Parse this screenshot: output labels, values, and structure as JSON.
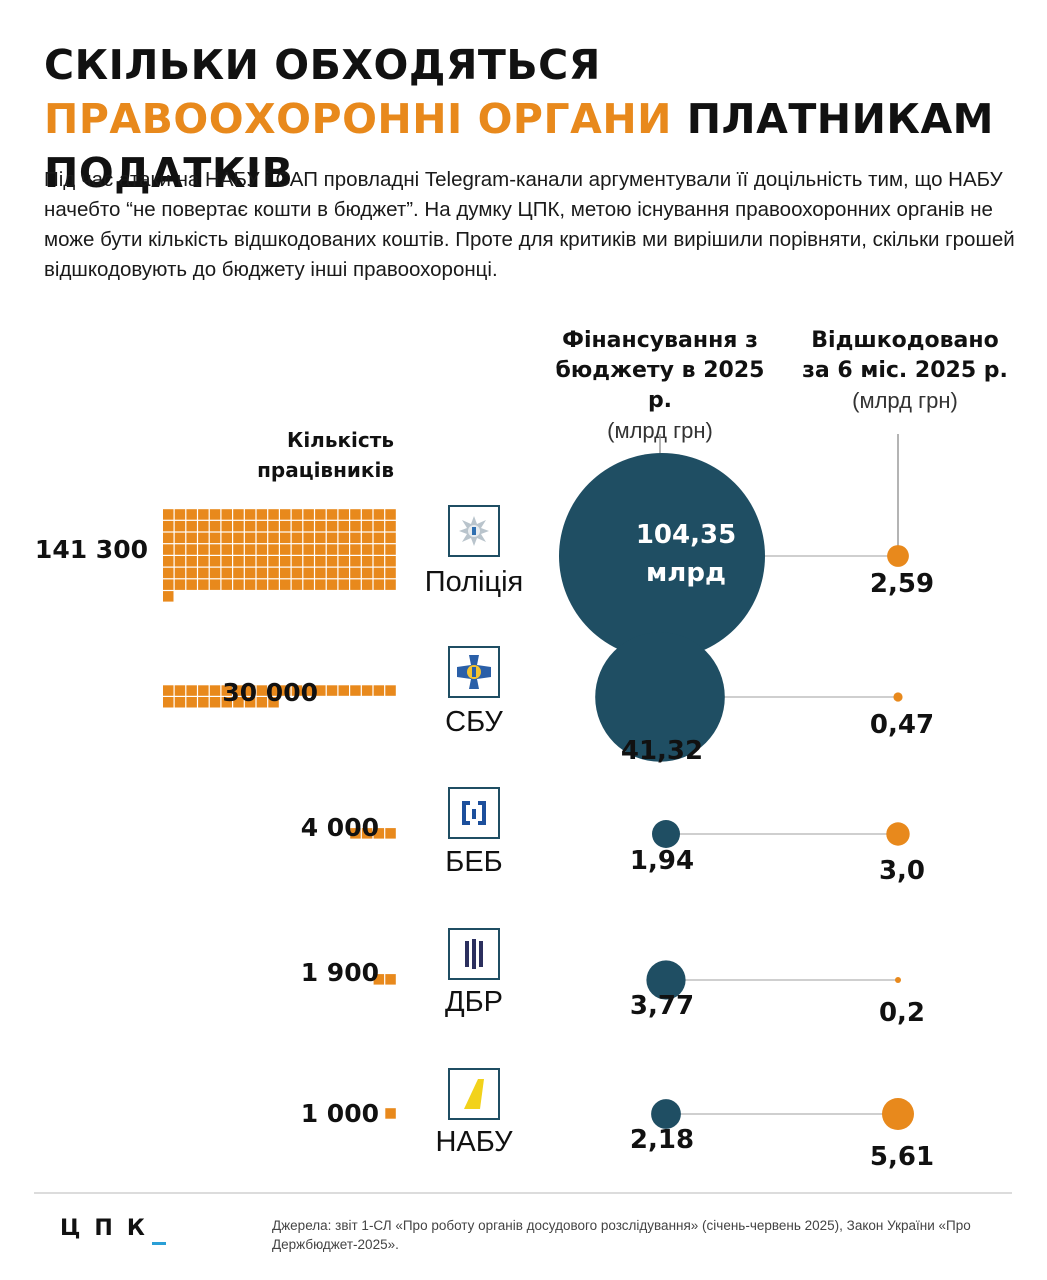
{
  "title": {
    "part1": "СКІЛЬКИ ОБХОДЯТЬСЯ ",
    "part2_orange": "ПРАВООХОРОННІ ОРГАНИ",
    "part3": " ПЛАТНИКАМ ПОДАТКІВ"
  },
  "intro": "Під час атаки на НАБУ і САП провладні Telegram-канали аргументували її доцільність тим, що НАБУ начебто “не повертає кошти в бюджет”. На думку ЦПК, метою існування правоохоронних органів не може бути кількість відшкодованих коштів. Проте для критиків ми вирішили порівняти, скільки грошей відшкодовують до бюджету інші правоохоронці.",
  "columns": {
    "staff": "Кількість працівників",
    "funding_title": "Фінансування з бюджету в 2025 р.",
    "funding_unit": "(млрд грн)",
    "recovered_title": "Відшкодовано за 6 міс. 2025 р.",
    "recovered_unit": "(млрд грн)"
  },
  "bubble_unit": "млрд",
  "colors": {
    "orange": "#E8891C",
    "navy": "#1F4E63",
    "line": "#CFCFCF"
  },
  "chart_data": {
    "type": "bubble-comparison",
    "categories": [
      "Поліція",
      "СБУ",
      "БЕБ",
      "ДБР",
      "НАБУ"
    ],
    "series": [
      {
        "name": "Кількість працівників",
        "values": [
          141300,
          30000,
          4000,
          1900,
          1000
        ],
        "labels": [
          "141 300",
          "30 000",
          "4 000",
          "1 900",
          "1 000"
        ]
      },
      {
        "name": "Фінансування з бюджету в 2025 р.",
        "values": [
          104.35,
          41.32,
          1.94,
          3.77,
          2.18
        ],
        "labels": [
          "104,35",
          "41,32",
          "1,94",
          "3,77",
          "2,18"
        ]
      },
      {
        "name": "Відшкодовано за 6 міс. 2025 р.",
        "values": [
          2.59,
          0.47,
          3.0,
          0.2,
          5.61
        ],
        "labels": [
          "2,59",
          "0,47",
          "3,0",
          "0,2",
          "5,61"
        ]
      }
    ]
  },
  "agencies": [
    {
      "name": "Поліція",
      "icon": "police-star-icon"
    },
    {
      "name": "СБУ",
      "icon": "sbu-cross-icon"
    },
    {
      "name": "БЕБ",
      "icon": "beb-emblem-icon"
    },
    {
      "name": "ДБР",
      "icon": "dbr-emblem-icon"
    },
    {
      "name": "НАБУ",
      "icon": "nabu-emblem-icon"
    }
  ],
  "footer": {
    "brand": "ЦПК",
    "sources": "Джерела: звіт 1-СЛ «Про роботу органів досудового розслідування» (січень-червень 2025), Закон України «Про Держбюджет-2025»."
  }
}
